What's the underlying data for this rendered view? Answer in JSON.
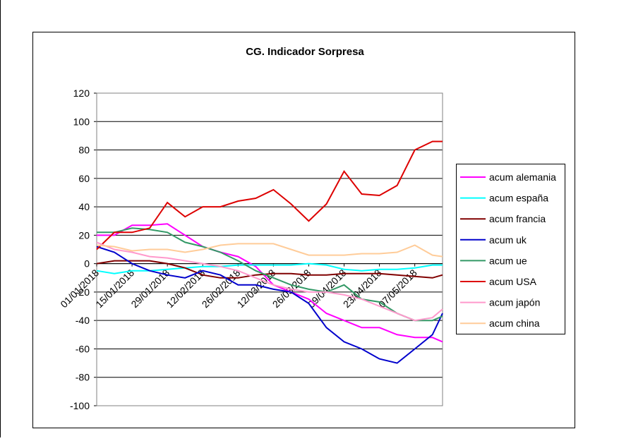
{
  "chart_data": {
    "type": "line",
    "title": "CG. Indicador Sorpresa",
    "x": [
      "01/01/2018",
      "08/01/2018",
      "15/01/2018",
      "22/01/2018",
      "29/01/2018",
      "05/02/2018",
      "12/02/2018",
      "19/02/2018",
      "26/02/2018",
      "05/03/2018",
      "12/03/2018",
      "19/03/2018",
      "26/03/2018",
      "02/04/2018",
      "09/04/2018",
      "16/04/2018",
      "23/04/2018",
      "30/04/2018",
      "07/05/2018",
      "14/05/2018",
      "18/05/2018"
    ],
    "xlim": [
      "01/01/2018",
      "18/05/2018"
    ],
    "xticks": [
      "01/01/2018",
      "15/01/2018",
      "29/01/2018",
      "12/02/2018",
      "26/02/2018",
      "12/03/2018",
      "26/03/2018",
      "09/04/2018",
      "23/04/2018",
      "07/05/2018"
    ],
    "ylim": [
      -100,
      120
    ],
    "yticks": [
      -100,
      -80,
      -60,
      -40,
      -20,
      0,
      20,
      40,
      60,
      80,
      100,
      120
    ],
    "grid": true,
    "legend": "right",
    "series": [
      {
        "name": "acum alemania",
        "color": "#ff00ff",
        "values": [
          20,
          20,
          27,
          27,
          28,
          20,
          12,
          8,
          5,
          -2,
          -15,
          -20,
          -25,
          -35,
          -40,
          -45,
          -45,
          -50,
          -52,
          -52,
          -55
        ]
      },
      {
        "name": "acum españa",
        "color": "#00ffff",
        "values": [
          -5,
          -7,
          -5,
          -5,
          -4,
          -3,
          -2,
          -2,
          -1,
          -1,
          -1,
          -1,
          0,
          -1,
          -4,
          -5,
          -4,
          -4,
          -3,
          -1,
          -1
        ]
      },
      {
        "name": "acum francia",
        "color": "#800000",
        "values": [
          0,
          2,
          2,
          2,
          0,
          -3,
          -8,
          -10,
          -10,
          -8,
          -7,
          -7,
          -8,
          -8,
          -7,
          -7,
          -7,
          -8,
          -9,
          -10,
          -8
        ]
      },
      {
        "name": "acum uk",
        "color": "#0000cc",
        "values": [
          12,
          8,
          0,
          -5,
          -8,
          -10,
          -5,
          -8,
          -15,
          -15,
          -18,
          -20,
          -28,
          -45,
          -55,
          -60,
          -67,
          -70,
          -60,
          -50,
          -35
        ]
      },
      {
        "name": "acum ue",
        "color": "#339966",
        "values": [
          22,
          22,
          25,
          24,
          22,
          15,
          12,
          8,
          2,
          -5,
          -10,
          -15,
          -18,
          -20,
          -15,
          -25,
          -27,
          -35,
          -40,
          -40,
          -37
        ]
      },
      {
        "name": "acum USA",
        "color": "#dd0000",
        "values": [
          10,
          22,
          22,
          25,
          43,
          33,
          40,
          40,
          44,
          46,
          52,
          42,
          30,
          42,
          65,
          49,
          48,
          55,
          80,
          86,
          86
        ]
      },
      {
        "name": "acum japón",
        "color": "#ff99cc",
        "values": [
          15,
          10,
          8,
          5,
          4,
          2,
          0,
          -2,
          -5,
          -10,
          -15,
          -18,
          -20,
          -20,
          -22,
          -25,
          -30,
          -35,
          -40,
          -38,
          -32
        ]
      },
      {
        "name": "acum china",
        "color": "#ffcc99",
        "values": [
          13,
          12,
          9,
          10,
          10,
          8,
          10,
          13,
          14,
          14,
          14,
          10,
          6,
          6,
          6,
          7,
          7,
          8,
          13,
          6,
          5
        ]
      }
    ]
  }
}
